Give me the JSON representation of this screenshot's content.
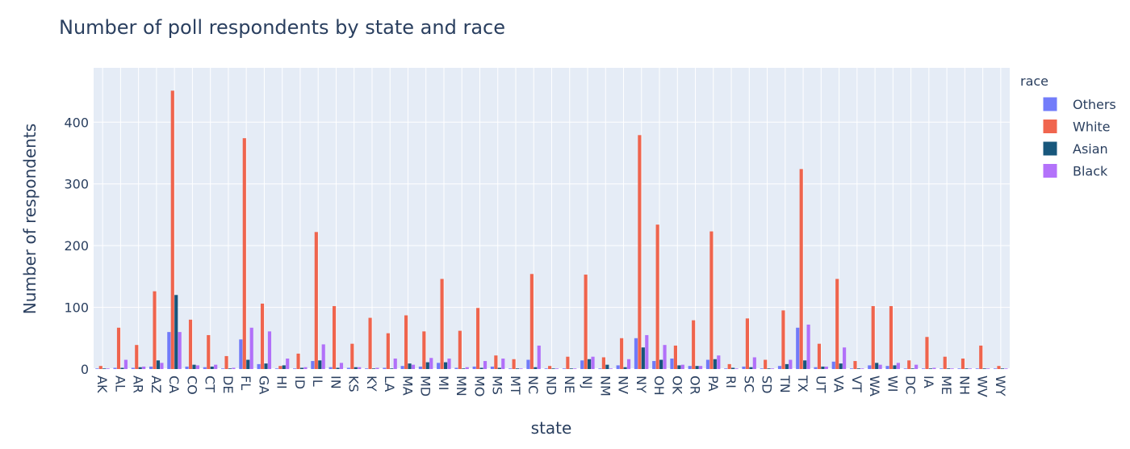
{
  "chart_data": {
    "type": "bar",
    "title": "Number of poll respondents by state and race",
    "xlabel": "state",
    "ylabel": "Number of respondents",
    "ylim": [
      0,
      488
    ],
    "yticks": [
      0,
      100,
      200,
      300,
      400
    ],
    "grid": true,
    "legend_position": "right",
    "legend_title": "race",
    "categories": [
      "AK",
      "AL",
      "AR",
      "AZ",
      "CA",
      "CO",
      "CT",
      "DE",
      "FL",
      "GA",
      "HI",
      "ID",
      "IL",
      "IN",
      "KS",
      "KY",
      "LA",
      "MA",
      "MD",
      "MI",
      "MN",
      "MO",
      "MS",
      "MT",
      "NC",
      "ND",
      "NE",
      "NJ",
      "NM",
      "NV",
      "NY",
      "OH",
      "OK",
      "OR",
      "PA",
      "RI",
      "SC",
      "SD",
      "TN",
      "TX",
      "UT",
      "VA",
      "VT",
      "WA",
      "WI",
      "DC",
      "IA",
      "ME",
      "NH",
      "WV",
      "WY"
    ],
    "series": [
      {
        "name": "Others",
        "color": "#636efa",
        "values": [
          1,
          2,
          2,
          4,
          60,
          4,
          3,
          1,
          48,
          8,
          1,
          1,
          13,
          3,
          2,
          1,
          2,
          5,
          4,
          10,
          2,
          4,
          4,
          1,
          15,
          1,
          1,
          14,
          1,
          6,
          50,
          13,
          17,
          5,
          15,
          1,
          4,
          1,
          5,
          67,
          3,
          12,
          1,
          6,
          5,
          1,
          1,
          1,
          1,
          1,
          1
        ]
      },
      {
        "name": "White",
        "color": "#ef553b",
        "values": [
          5,
          67,
          39,
          126,
          451,
          80,
          55,
          21,
          374,
          106,
          5,
          25,
          222,
          102,
          41,
          83,
          58,
          87,
          61,
          146,
          62,
          99,
          22,
          16,
          154,
          5,
          20,
          153,
          19,
          50,
          379,
          234,
          38,
          79,
          223,
          8,
          82,
          15,
          95,
          324,
          41,
          146,
          13,
          102,
          102,
          14,
          52,
          20,
          17,
          38,
          5
        ]
      },
      {
        "name": "Asian",
        "color": "#00456e",
        "values": [
          1,
          2,
          3,
          14,
          120,
          7,
          4,
          1,
          15,
          9,
          6,
          2,
          14,
          2,
          3,
          1,
          1,
          9,
          11,
          11,
          1,
          2,
          2,
          1,
          3,
          1,
          1,
          16,
          7,
          3,
          35,
          15,
          6,
          5,
          16,
          2,
          3,
          1,
          8,
          14,
          4,
          9,
          1,
          10,
          6,
          1,
          1,
          1,
          1,
          1,
          1
        ]
      },
      {
        "name": "Black",
        "color": "#ab63fa",
        "values": [
          1,
          15,
          4,
          10,
          60,
          6,
          7,
          2,
          67,
          61,
          17,
          3,
          40,
          10,
          3,
          2,
          17,
          7,
          18,
          17,
          3,
          13,
          17,
          1,
          38,
          1,
          1,
          20,
          1,
          16,
          55,
          39,
          7,
          5,
          22,
          1,
          19,
          1,
          15,
          72,
          4,
          35,
          1,
          7,
          10,
          7,
          2,
          1,
          1,
          1,
          1
        ]
      }
    ]
  },
  "legend_items": [
    "Others",
    "White",
    "Asian",
    "Black"
  ]
}
